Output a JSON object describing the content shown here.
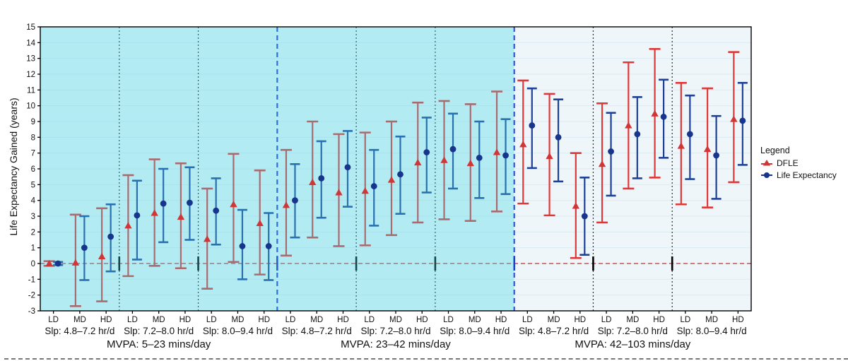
{
  "chart_data": {
    "type": "errorbar",
    "ylabel": "Life Expectancy Gained (years)",
    "ylim": [
      -3,
      15
    ],
    "yticks": [
      -3,
      -2,
      -1,
      0,
      1,
      2,
      3,
      4,
      5,
      6,
      7,
      8,
      9,
      10,
      11,
      12,
      13,
      14,
      15
    ],
    "zero_reference_line": 0,
    "grid": true,
    "legend": {
      "title": "Legend",
      "entries": [
        {
          "label": "DFLE",
          "marker": "triangle"
        },
        {
          "label": "Life Expectancy",
          "marker": "circle"
        }
      ]
    },
    "colors": {
      "dfle_marker": "#d23535",
      "dfle_bar": "#df3838",
      "le_marker": "#17358c",
      "le_bar": "#1e4099",
      "plot_bg": "#eef6fa",
      "grid": "#dcebf3",
      "shade_overlay": "rgba(60,214,228,0.33)",
      "zero_line": "#c03030",
      "slp_divider": "#2a2a2a",
      "mvpa_divider": "#2743cd",
      "axis": "#000000",
      "text": "#111111"
    },
    "panels": [
      {
        "mvpa": "MVPA: 5–23 mins/day",
        "shaded": true,
        "groups": [
          {
            "slp": "Slp: 4.8–7.2 hr/d",
            "points": [
              {
                "dose": "LD",
                "dfle": {
                  "v": 0.0,
                  "lo": -0.15,
                  "hi": 0.15
                },
                "le": {
                  "v": 0.0,
                  "lo": -0.1,
                  "hi": 0.1
                }
              },
              {
                "dose": "MD",
                "dfle": {
                  "v": 0.05,
                  "lo": -2.7,
                  "hi": 3.1
                },
                "le": {
                  "v": 1.0,
                  "lo": -1.05,
                  "hi": 3.0
                }
              },
              {
                "dose": "HD",
                "dfle": {
                  "v": 0.45,
                  "lo": -2.4,
                  "hi": 3.5
                },
                "le": {
                  "v": 1.7,
                  "lo": -0.5,
                  "hi": 3.75
                }
              }
            ]
          },
          {
            "slp": "Slp: 7.2–8.0 hr/d",
            "points": [
              {
                "dose": "LD",
                "dfle": {
                  "v": 2.4,
                  "lo": -0.8,
                  "hi": 5.6
                },
                "le": {
                  "v": 3.05,
                  "lo": 0.25,
                  "hi": 5.25
                }
              },
              {
                "dose": "MD",
                "dfle": {
                  "v": 3.2,
                  "lo": -0.15,
                  "hi": 6.6
                },
                "le": {
                  "v": 3.8,
                  "lo": 1.35,
                  "hi": 6.0
                }
              },
              {
                "dose": "HD",
                "dfle": {
                  "v": 2.95,
                  "lo": -0.3,
                  "hi": 6.35
                },
                "le": {
                  "v": 3.85,
                  "lo": 1.5,
                  "hi": 6.1
                }
              }
            ]
          },
          {
            "slp": "Slp: 8.0–9.4 hr/d",
            "points": [
              {
                "dose": "LD",
                "dfle": {
                  "v": 1.55,
                  "lo": -1.6,
                  "hi": 4.75
                },
                "le": {
                  "v": 3.35,
                  "lo": 1.2,
                  "hi": 5.4
                }
              },
              {
                "dose": "MD",
                "dfle": {
                  "v": 3.75,
                  "lo": 0.1,
                  "hi": 6.95
                },
                "le": {
                  "v": 1.1,
                  "lo": -1.0,
                  "hi": 3.4
                }
              },
              {
                "dose": "HD",
                "dfle": {
                  "v": 2.55,
                  "lo": -0.7,
                  "hi": 5.9
                },
                "le": {
                  "v": 1.1,
                  "lo": -1.05,
                  "hi": 3.2
                }
              }
            ]
          }
        ]
      },
      {
        "mvpa": "MVPA: 23–42 mins/day",
        "shaded": true,
        "groups": [
          {
            "slp": "Slp: 4.8–7.2 hr/d",
            "points": [
              {
                "dose": "LD",
                "dfle": {
                  "v": 3.7,
                  "lo": 0.5,
                  "hi": 7.2
                },
                "le": {
                  "v": 4.0,
                  "lo": 1.65,
                  "hi": 6.3
                }
              },
              {
                "dose": "MD",
                "dfle": {
                  "v": 5.15,
                  "lo": 1.65,
                  "hi": 9.0
                },
                "le": {
                  "v": 5.4,
                  "lo": 2.9,
                  "hi": 7.75
                }
              },
              {
                "dose": "HD",
                "dfle": {
                  "v": 4.5,
                  "lo": 1.1,
                  "hi": 8.2
                },
                "le": {
                  "v": 6.1,
                  "lo": 3.6,
                  "hi": 8.4
                }
              }
            ]
          },
          {
            "slp": "Slp: 7.2–8.0 hr/d",
            "points": [
              {
                "dose": "LD",
                "dfle": {
                  "v": 4.6,
                  "lo": 1.15,
                  "hi": 8.3
                },
                "le": {
                  "v": 4.9,
                  "lo": 2.4,
                  "hi": 7.2
                }
              },
              {
                "dose": "MD",
                "dfle": {
                  "v": 5.3,
                  "lo": 1.8,
                  "hi": 9.0
                },
                "le": {
                  "v": 5.65,
                  "lo": 3.15,
                  "hi": 8.05
                }
              },
              {
                "dose": "HD",
                "dfle": {
                  "v": 6.4,
                  "lo": 2.6,
                  "hi": 10.2
                },
                "le": {
                  "v": 7.05,
                  "lo": 4.5,
                  "hi": 9.25
                }
              }
            ]
          },
          {
            "slp": "Slp: 8.0–9.4 hr/d",
            "points": [
              {
                "dose": "LD",
                "dfle": {
                  "v": 6.55,
                  "lo": 2.8,
                  "hi": 10.3
                },
                "le": {
                  "v": 7.25,
                  "lo": 4.75,
                  "hi": 9.5
                }
              },
              {
                "dose": "MD",
                "dfle": {
                  "v": 6.35,
                  "lo": 2.7,
                  "hi": 10.1
                },
                "le": {
                  "v": 6.7,
                  "lo": 4.15,
                  "hi": 9.0
                }
              },
              {
                "dose": "HD",
                "dfle": {
                  "v": 7.05,
                  "lo": 3.3,
                  "hi": 10.9
                },
                "le": {
                  "v": 6.85,
                  "lo": 4.4,
                  "hi": 9.15
                }
              }
            ]
          }
        ]
      },
      {
        "mvpa": "MVPA: 42–103 mins/day",
        "shaded": false,
        "groups": [
          {
            "slp": "Slp: 4.8–7.2 hr/d",
            "points": [
              {
                "dose": "LD",
                "dfle": {
                  "v": 7.55,
                  "lo": 3.8,
                  "hi": 11.6
                },
                "le": {
                  "v": 8.75,
                  "lo": 6.05,
                  "hi": 11.1
                }
              },
              {
                "dose": "MD",
                "dfle": {
                  "v": 6.8,
                  "lo": 3.05,
                  "hi": 10.75
                },
                "le": {
                  "v": 8.0,
                  "lo": 5.2,
                  "hi": 10.4
                }
              },
              {
                "dose": "HD",
                "dfle": {
                  "v": 3.65,
                  "lo": 0.35,
                  "hi": 7.0
                },
                "le": {
                  "v": 3.0,
                  "lo": 0.55,
                  "hi": 5.45
                }
              }
            ]
          },
          {
            "slp": "Slp: 7.2–8.0 hr/d",
            "points": [
              {
                "dose": "LD",
                "dfle": {
                  "v": 6.3,
                  "lo": 2.6,
                  "hi": 10.15
                },
                "le": {
                  "v": 7.1,
                  "lo": 4.3,
                  "hi": 9.55
                }
              },
              {
                "dose": "MD",
                "dfle": {
                  "v": 8.75,
                  "lo": 4.75,
                  "hi": 12.75
                },
                "le": {
                  "v": 8.2,
                  "lo": 5.4,
                  "hi": 10.55
                }
              },
              {
                "dose": "HD",
                "dfle": {
                  "v": 9.5,
                  "lo": 5.45,
                  "hi": 13.6
                },
                "le": {
                  "v": 9.3,
                  "lo": 6.7,
                  "hi": 11.65
                }
              }
            ]
          },
          {
            "slp": "Slp: 8.0–9.4 hr/d",
            "points": [
              {
                "dose": "LD",
                "dfle": {
                  "v": 7.45,
                  "lo": 3.75,
                  "hi": 11.45
                },
                "le": {
                  "v": 8.2,
                  "lo": 5.35,
                  "hi": 10.65
                }
              },
              {
                "dose": "MD",
                "dfle": {
                  "v": 7.25,
                  "lo": 3.55,
                  "hi": 11.1
                },
                "le": {
                  "v": 6.85,
                  "lo": 4.1,
                  "hi": 9.35
                }
              },
              {
                "dose": "HD",
                "dfle": {
                  "v": 9.15,
                  "lo": 5.15,
                  "hi": 13.4
                },
                "le": {
                  "v": 9.05,
                  "lo": 6.25,
                  "hi": 11.45
                }
              }
            ]
          }
        ]
      }
    ]
  }
}
